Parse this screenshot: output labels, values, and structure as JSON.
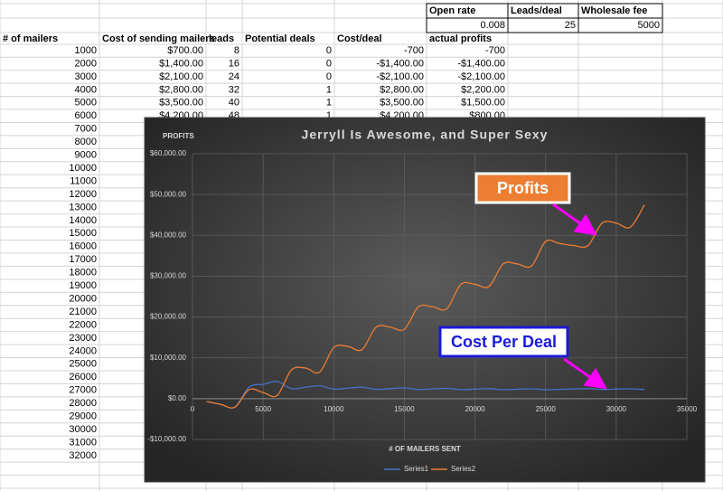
{
  "sheet": {
    "params": [
      {
        "label": "Open rate",
        "value": 0.008
      },
      {
        "label": "Leads/deal",
        "value": 25
      },
      {
        "label": "Wholesale fee",
        "value": 5000
      }
    ],
    "headers": [
      "# of mailers",
      "Cost of sending mailers",
      "leads",
      "Potential deals",
      "Cost/deal",
      "actual profits"
    ],
    "rows": [
      [
        1000,
        "$700.00",
        8,
        0,
        -700,
        -700
      ],
      [
        2000,
        "$1,400.00",
        16,
        0,
        "-$1,400.00",
        "-$1,400.00"
      ],
      [
        3000,
        "$2,100.00",
        24,
        0,
        "-$2,100.00",
        "-$2,100.00"
      ],
      [
        4000,
        "$2,800.00",
        32,
        1,
        "$2,800.00",
        "$2,200.00"
      ],
      [
        5000,
        "$3,500.00",
        40,
        1,
        "$3,500.00",
        "$1,500.00"
      ],
      [
        6000,
        "$4,200.00",
        48,
        1,
        "$4,200.00",
        "$800.00"
      ],
      [
        7000
      ],
      [
        8000
      ],
      [
        9000
      ],
      [
        10000
      ],
      [
        11000
      ],
      [
        12000
      ],
      [
        13000
      ],
      [
        14000
      ],
      [
        15000
      ],
      [
        16000
      ],
      [
        17000
      ],
      [
        18000
      ],
      [
        19000
      ],
      [
        20000
      ],
      [
        21000
      ],
      [
        22000
      ],
      [
        23000
      ],
      [
        24000
      ],
      [
        25000
      ],
      [
        26000
      ],
      [
        27000
      ],
      [
        28000
      ],
      [
        29000
      ],
      [
        30000
      ],
      [
        31000
      ],
      [
        32000
      ]
    ]
  },
  "chart_data": {
    "type": "line",
    "title": "Jerryll Is Awesome, and Super Sexy",
    "y_label": "PROFITS",
    "x_label": "# OF MAILERS SENT",
    "x": [
      1000,
      2000,
      3000,
      4000,
      5000,
      6000,
      7000,
      8000,
      9000,
      10000,
      11000,
      12000,
      13000,
      14000,
      15000,
      16000,
      17000,
      18000,
      19000,
      20000,
      21000,
      22000,
      23000,
      24000,
      25000,
      26000,
      27000,
      28000,
      29000,
      30000,
      31000,
      32000
    ],
    "series": [
      {
        "name": "Series1",
        "color": "#4472c4",
        "values": [
          -700,
          -1400,
          -2100,
          2800,
          3500,
          4200,
          2450,
          2800,
          3150,
          2333.33,
          2566.67,
          2800,
          2275,
          2450,
          2625,
          2240,
          2380,
          2520,
          2216.67,
          2333.33,
          2450,
          2200,
          2300,
          2400,
          2187.5,
          2275,
          2362.5,
          2450,
          2255.56,
          2333.33,
          2411.11,
          2240
        ]
      },
      {
        "name": "Series2",
        "color": "#ed7d31",
        "values": [
          -700,
          -1400,
          -2100,
          2200,
          1500,
          800,
          7000,
          7500,
          6500,
          12500,
          12800,
          12000,
          17500,
          17500,
          17000,
          22500,
          22500,
          22000,
          28000,
          28000,
          27500,
          33000,
          33000,
          32500,
          38500,
          38000,
          37500,
          37500,
          43000,
          43000,
          42000,
          47500
        ]
      }
    ],
    "xlim": [
      0,
      35000
    ],
    "xticks": [
      0,
      5000,
      10000,
      15000,
      20000,
      25000,
      30000,
      35000
    ],
    "ylim": [
      -10000,
      60000
    ],
    "yticks": [
      {
        "value": -10000,
        "label": "-$10,000.00"
      },
      {
        "value": 0,
        "label": "$0.00"
      },
      {
        "value": 10000,
        "label": "$10,000.00"
      },
      {
        "value": 20000,
        "label": "$20,000.00"
      },
      {
        "value": 30000,
        "label": "$30,000.00"
      },
      {
        "value": 40000,
        "label": "$40,000.00"
      },
      {
        "value": 50000,
        "label": "$50,000.00"
      },
      {
        "value": 60000,
        "label": "$60,000.00"
      }
    ],
    "grid": true,
    "legend": "bottom",
    "annotations": [
      "Profits",
      "Cost Per Deal"
    ]
  }
}
